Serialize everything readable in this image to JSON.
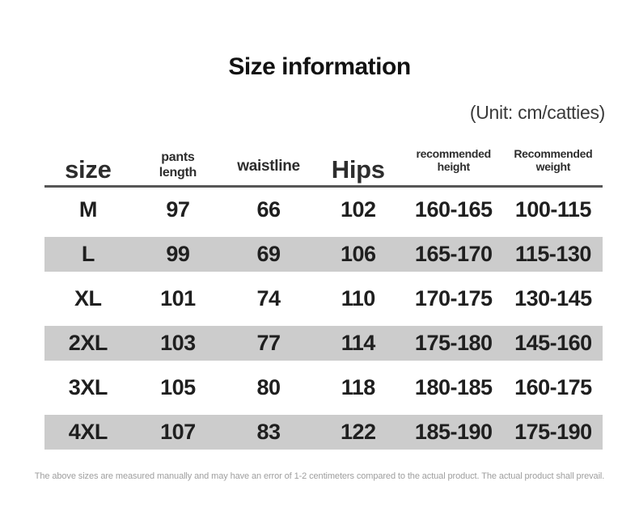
{
  "title": "Size information",
  "unit_note": "(Unit: cm/catties)",
  "table": {
    "columns": [
      {
        "label": "size"
      },
      {
        "label": "pants\nlength"
      },
      {
        "label": "waistline"
      },
      {
        "label": "Hips"
      },
      {
        "label": "recommended height"
      },
      {
        "label": "Recommended weight"
      }
    ],
    "rows": [
      {
        "size": "M",
        "pants_length": "97",
        "waistline": "66",
        "hips": "102",
        "height": "160-165",
        "weight": "100-115"
      },
      {
        "size": "L",
        "pants_length": "99",
        "waistline": "69",
        "hips": "106",
        "height": "165-170",
        "weight": "115-130"
      },
      {
        "size": "XL",
        "pants_length": "101",
        "waistline": "74",
        "hips": "110",
        "height": "170-175",
        "weight": "130-145"
      },
      {
        "size": "2XL",
        "pants_length": "103",
        "waistline": "77",
        "hips": "114",
        "height": "175-180",
        "weight": "145-160"
      },
      {
        "size": "3XL",
        "pants_length": "105",
        "waistline": "80",
        "hips": "118",
        "height": "180-185",
        "weight": "160-175"
      },
      {
        "size": "4XL",
        "pants_length": "107",
        "waistline": "83",
        "hips": "122",
        "height": "185-190",
        "weight": "175-190"
      }
    ]
  },
  "footer_note": "The above sizes are measured manually and may have an error of 1-2 centimeters compared to the actual product. The actual product shall prevail.",
  "colors": {
    "stripe": "#cccccc",
    "header_line": "#565656",
    "text": "#1f1f1f",
    "muted_text": "#9e9e9e"
  },
  "chart_data": {
    "type": "table",
    "title": "Size information",
    "unit": "cm/catties",
    "columns": [
      "size",
      "pants length",
      "waistline",
      "Hips",
      "recommended height",
      "Recommended weight"
    ],
    "rows": [
      [
        "M",
        "97",
        "66",
        "102",
        "160-165",
        "100-115"
      ],
      [
        "L",
        "99",
        "69",
        "106",
        "165-170",
        "115-130"
      ],
      [
        "XL",
        "101",
        "74",
        "110",
        "170-175",
        "130-145"
      ],
      [
        "2XL",
        "103",
        "77",
        "114",
        "175-180",
        "145-160"
      ],
      [
        "3XL",
        "105",
        "80",
        "118",
        "180-185",
        "160-175"
      ],
      [
        "4XL",
        "107",
        "83",
        "122",
        "185-190",
        "175-190"
      ]
    ],
    "note": "The above sizes are measured manually and may have an error of 1-2 centimeters compared to the actual product. The actual product shall prevail."
  }
}
